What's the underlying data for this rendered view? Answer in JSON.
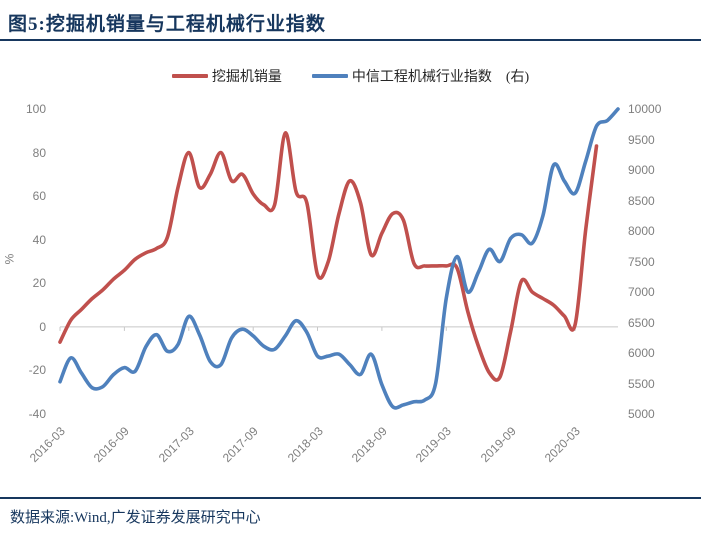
{
  "header": {
    "title": "图5:挖掘机销量与工程机械行业指数"
  },
  "colors": {
    "title_navy": "#17375E",
    "axis_gray": "#7F7F7F",
    "grid_gray": "#C8C8C8",
    "excavator_red": "#C0504D",
    "index_blue": "#4F81BD"
  },
  "chart_data": {
    "type": "line",
    "title": "图5:挖掘机销量与工程机械行业指数",
    "legend_position": "top",
    "grid": "zero-line-only",
    "x": [
      "2016-03",
      "2016-04",
      "2016-05",
      "2016-06",
      "2016-07",
      "2016-08",
      "2016-09",
      "2016-10",
      "2016-11",
      "2016-12",
      "2017-01",
      "2017-02",
      "2017-03",
      "2017-04",
      "2017-05",
      "2017-06",
      "2017-07",
      "2017-08",
      "2017-09",
      "2017-10",
      "2017-11",
      "2017-12",
      "2018-01",
      "2018-02",
      "2018-03",
      "2018-04",
      "2018-05",
      "2018-06",
      "2018-07",
      "2018-08",
      "2018-09",
      "2018-10",
      "2018-11",
      "2018-12",
      "2019-01",
      "2019-02",
      "2019-03",
      "2019-04",
      "2019-05",
      "2019-06",
      "2019-07",
      "2019-08",
      "2019-09",
      "2019-10",
      "2019-11",
      "2019-12",
      "2020-01",
      "2020-02",
      "2020-03",
      "2020-04",
      "2020-05",
      "2020-06",
      "2020-07"
    ],
    "x_tick_every": 6,
    "y_left": {
      "label": "%",
      "min": -40,
      "max": 100,
      "ticks": [
        100,
        80,
        60,
        40,
        20,
        0,
        -20,
        -40
      ]
    },
    "y_right": {
      "min": 5000,
      "max": 10000,
      "ticks": [
        10000,
        9500,
        9000,
        8500,
        8000,
        7500,
        7000,
        6500,
        6000,
        5500,
        5000
      ]
    },
    "series": [
      {
        "name": "挖掘机销量",
        "axis": "left",
        "color": "#C0504D",
        "values": [
          -7,
          3,
          8,
          13,
          17,
          22,
          26,
          31,
          34,
          36,
          41,
          64,
          80,
          64,
          70,
          80,
          67,
          70,
          61,
          56,
          56,
          89,
          62,
          57,
          24,
          30,
          52,
          67,
          57,
          33,
          43,
          52,
          49,
          29,
          28,
          28,
          28,
          27,
          7,
          -9,
          -21,
          -23,
          -2,
          21,
          16,
          13,
          10,
          5,
          1,
          45,
          83,
          null,
          null
        ]
      },
      {
        "name": "中信工程机械行业指数　(右)",
        "axis": "right",
        "color": "#4F81BD",
        "values": [
          5530,
          5920,
          5670,
          5430,
          5450,
          5650,
          5760,
          5700,
          6100,
          6300,
          6030,
          6140,
          6600,
          6300,
          5860,
          5810,
          6250,
          6390,
          6280,
          6110,
          6060,
          6280,
          6530,
          6340,
          5950,
          5950,
          5980,
          5810,
          5650,
          5980,
          5480,
          5120,
          5150,
          5200,
          5230,
          5500,
          6900,
          7580,
          7000,
          7330,
          7700,
          7500,
          7880,
          7940,
          7800,
          8250,
          9080,
          8820,
          8620,
          9150,
          9720,
          9810,
          10000
        ]
      }
    ]
  },
  "footer": {
    "source": "数据来源:Wind,广发证券发展研究中心"
  }
}
